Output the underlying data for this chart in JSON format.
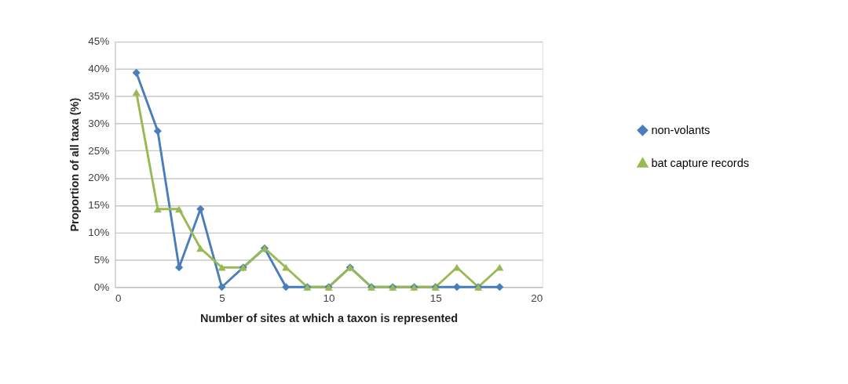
{
  "chart_data": {
    "type": "line",
    "xlabel": "Number of sites at which a taxon is represented",
    "ylabel": "Proportion of all taxa (%)",
    "x": [
      1,
      2,
      3,
      4,
      5,
      6,
      7,
      8,
      9,
      10,
      11,
      12,
      13,
      14,
      15,
      16,
      17,
      18
    ],
    "series": [
      {
        "name": "non-volants",
        "color": "#4a7ebb",
        "marker": "diamond",
        "values": [
          39.3,
          28.6,
          3.6,
          14.3,
          0,
          3.6,
          7.1,
          0,
          0,
          0,
          3.6,
          0,
          0,
          0,
          0,
          0,
          0,
          0
        ]
      },
      {
        "name": "bat capture records",
        "color": "#98b954",
        "marker": "triangle",
        "values": [
          35.7,
          14.3,
          14.3,
          7.1,
          3.6,
          3.6,
          7.1,
          3.6,
          0,
          0,
          3.6,
          0,
          0,
          0,
          0,
          3.6,
          0,
          3.6
        ]
      }
    ],
    "xlim": [
      0,
      20
    ],
    "xticks": [
      0,
      5,
      10,
      15,
      20
    ],
    "ylim": [
      0,
      45
    ],
    "yticks": [
      {
        "value": 0,
        "label": "0%"
      },
      {
        "value": 5,
        "label": "5%"
      },
      {
        "value": 10,
        "label": "10%"
      },
      {
        "value": 15,
        "label": "15%"
      },
      {
        "value": 20,
        "label": "20%"
      },
      {
        "value": 25,
        "label": "25%"
      },
      {
        "value": 30,
        "label": "30%"
      },
      {
        "value": 35,
        "label": "35%"
      },
      {
        "value": 40,
        "label": "40%"
      },
      {
        "value": 45,
        "label": "45%"
      }
    ],
    "grid": "y",
    "legend": "right",
    "line_style": "solid"
  }
}
